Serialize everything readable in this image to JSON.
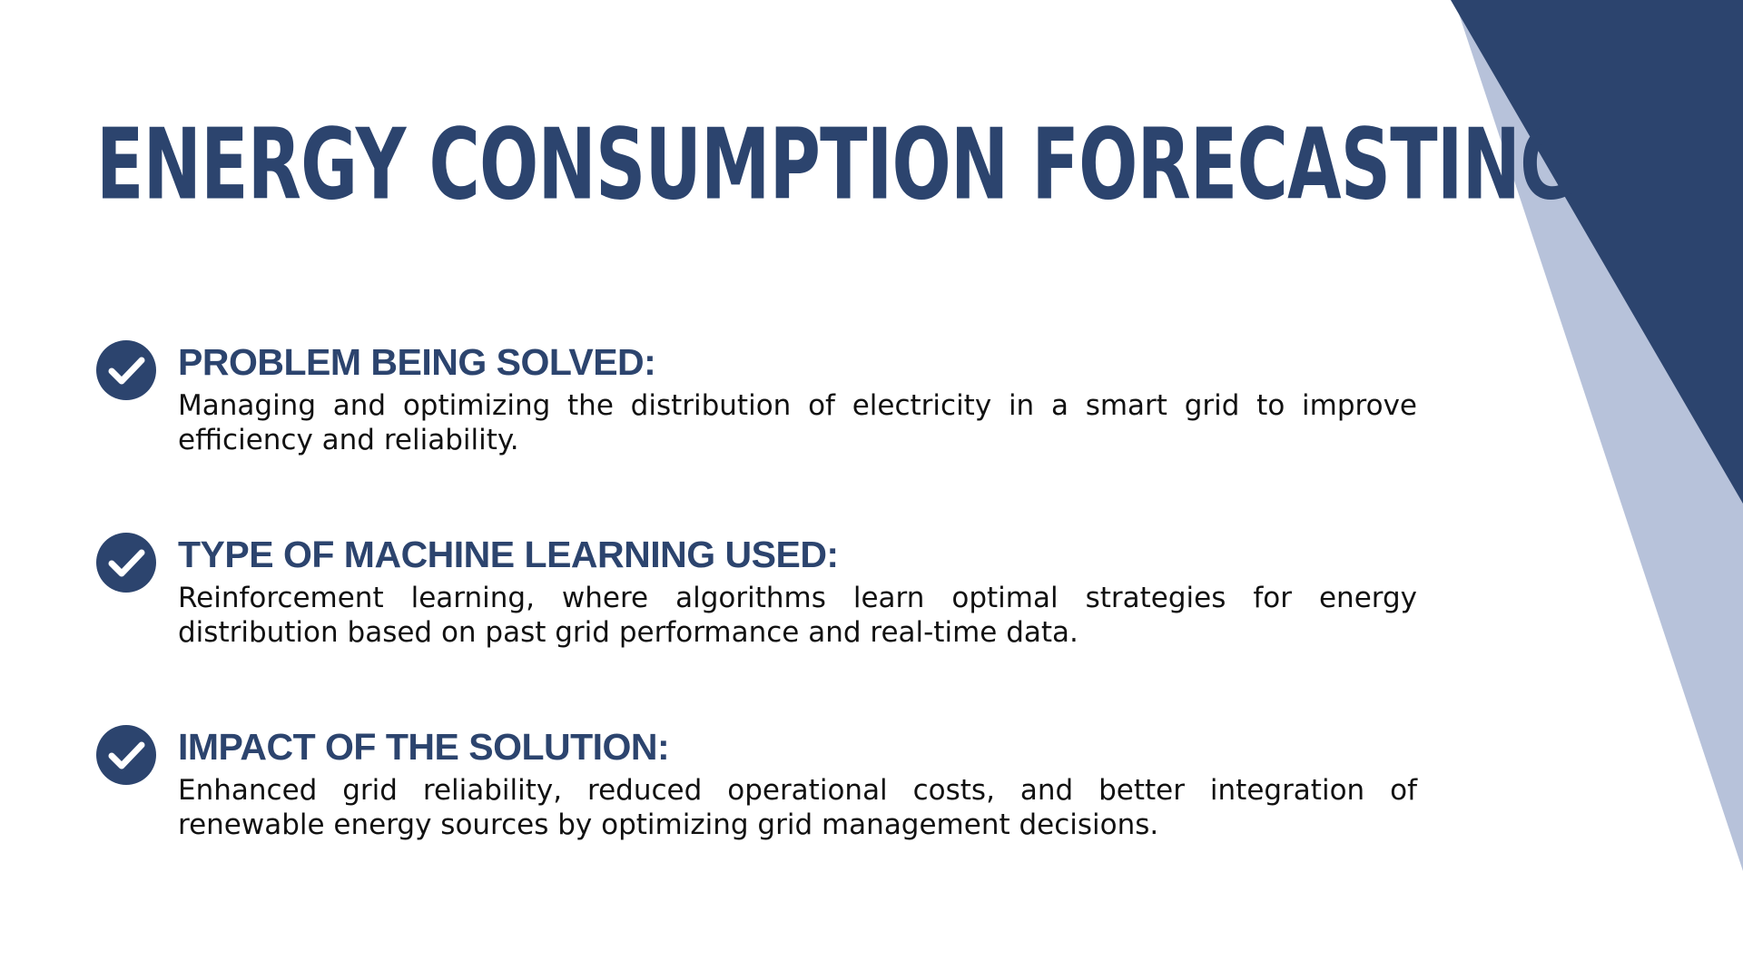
{
  "colors": {
    "primary": "#2c446e",
    "secondary": "#b7c2da",
    "background": "#ffffff",
    "body_text": "#111111"
  },
  "title": "ENERGY CONSUMPTION FORECASTING",
  "items": [
    {
      "icon": "check-circle-icon",
      "heading": "PROBLEM BEING SOLVED:",
      "description": "Managing and optimizing the distribution of electricity in a smart grid to improve efficiency and reliability."
    },
    {
      "icon": "check-circle-icon",
      "heading": "TYPE OF MACHINE LEARNING USED:",
      "description": "Reinforcement learning, where algorithms learn optimal strategies for energy distribution based on past grid performance and real-time data."
    },
    {
      "icon": "check-circle-icon",
      "heading": "IMPACT OF THE SOLUTION:",
      "description": "Enhanced grid reliability, reduced operational costs, and better integration of renewable energy sources by optimizing grid management decisions."
    }
  ]
}
